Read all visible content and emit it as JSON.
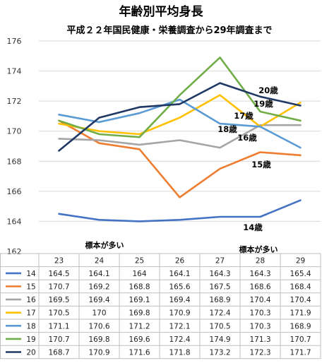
{
  "chart_data": {
    "type": "line",
    "title": "年齢別平均身長",
    "subtitle": "平成２２年国民健康・栄養調査から29年調査まで",
    "categories": [
      "23",
      "24",
      "25",
      "26",
      "27",
      "28",
      "29"
    ],
    "ylim": [
      162,
      176
    ],
    "yticks": [
      "162",
      "164",
      "166",
      "168",
      "170",
      "172",
      "174",
      "176"
    ],
    "grid": true,
    "legend": "data-table",
    "series": [
      {
        "name": "14",
        "color": "#4472C4",
        "values": [
          164.5,
          164.1,
          164,
          164.1,
          164.3,
          164.3,
          165.4
        ],
        "label": "14歳"
      },
      {
        "name": "15",
        "color": "#ED7D31",
        "values": [
          170.7,
          169.2,
          168.8,
          165.6,
          167.5,
          168.6,
          168.4
        ],
        "label": "15歳"
      },
      {
        "name": "16",
        "color": "#A5A5A5",
        "values": [
          169.5,
          169.4,
          169.1,
          169.4,
          168.9,
          170.4,
          170.4
        ],
        "label": "16歳"
      },
      {
        "name": "17",
        "color": "#FFC000",
        "values": [
          170.5,
          170,
          169.8,
          170.9,
          172.4,
          170.3,
          171.9
        ],
        "label": "17歳"
      },
      {
        "name": "18",
        "color": "#5B9BD5",
        "values": [
          171.1,
          170.6,
          171.2,
          172.1,
          170.5,
          170.3,
          168.9
        ],
        "label": "18歳"
      },
      {
        "name": "19",
        "color": "#70AD47",
        "values": [
          170.7,
          169.8,
          169.6,
          172.4,
          174.9,
          171.3,
          170.7
        ],
        "label": "19歳"
      },
      {
        "name": "20",
        "color": "#1F3864",
        "values": [
          168.7,
          170.9,
          171.6,
          171.8,
          173.2,
          172.3,
          171.7
        ],
        "label": "20歳"
      }
    ],
    "annotations": [
      "標本が多い",
      "標本が多い"
    ],
    "table": {
      "display": [
        [
          "164.5",
          "164.1",
          "164",
          "164.1",
          "164.3",
          "164.3",
          "165.4"
        ],
        [
          "170.7",
          "169.2",
          "168.8",
          "165.6",
          "167.5",
          "168.6",
          "168.4"
        ],
        [
          "169.5",
          "169.4",
          "169.1",
          "169.4",
          "168.9",
          "170.4",
          "170.4"
        ],
        [
          "170.5",
          "170",
          "169.8",
          "170.9",
          "172.4",
          "170.3",
          "171.9"
        ],
        [
          "171.1",
          "170.6",
          "171.2",
          "172.1",
          "170.5",
          "170.3",
          "168.9"
        ],
        [
          "170.7",
          "169.8",
          "169.6",
          "172.4",
          "174.9",
          "171.3",
          "170.7"
        ],
        [
          "168.7",
          "170.9",
          "171.6",
          "171.8",
          "173.2",
          "172.3",
          "171.7"
        ]
      ]
    }
  }
}
